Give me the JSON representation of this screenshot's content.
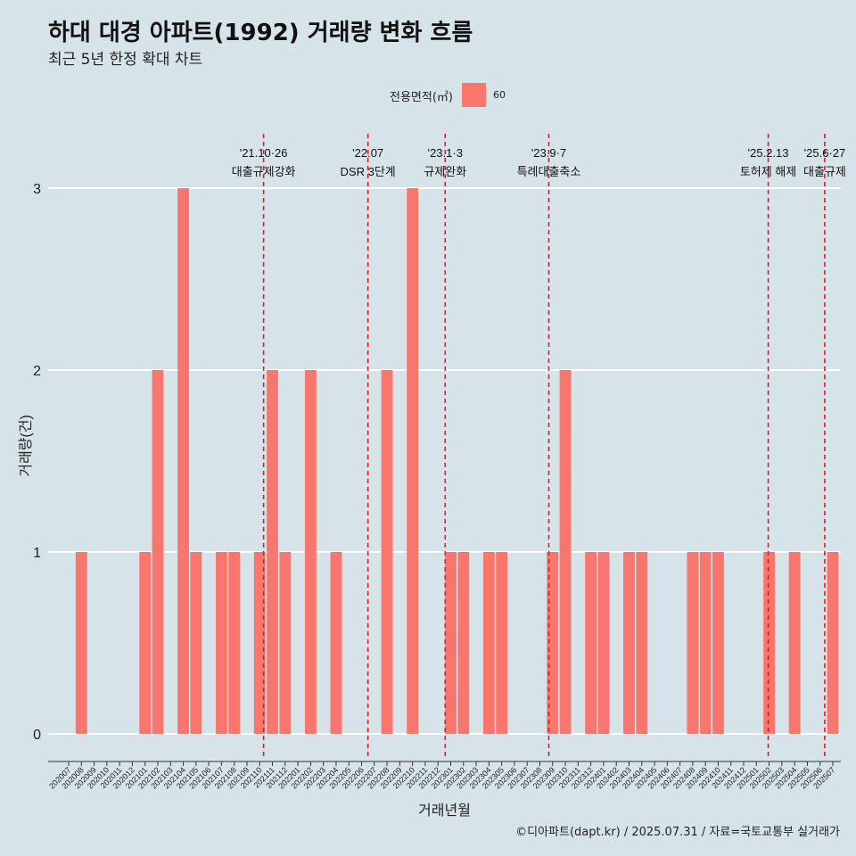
{
  "title": "하대 대경 아파트(1992) 거래량 변화 흐름",
  "subtitle": "최근 5년 한정 확대 차트",
  "legend": {
    "title": "전용면적(㎡)",
    "label": "60",
    "color": "#f8766d"
  },
  "caption": "©디아파트(dapt.kr) / 2025.07.31 / 자료=국토교통부 실거래가",
  "colors": {
    "background": "#d6e4ea",
    "bar": "#f8766d",
    "event_line": "#e31a1c",
    "grid": "#ffffff"
  },
  "chart_data": {
    "type": "bar",
    "xlabel": "거래년월",
    "ylabel": "거래량(건)",
    "ylim": [
      0,
      3
    ],
    "yticks": [
      0,
      1,
      2,
      3
    ],
    "grid": true,
    "legend_position": "top",
    "categories": [
      "202007",
      "202008",
      "202009",
      "202010",
      "202011",
      "202012",
      "202101",
      "202102",
      "202103",
      "202104",
      "202105",
      "202106",
      "202107",
      "202108",
      "202109",
      "202110",
      "202111",
      "202112",
      "202201",
      "202202",
      "202203",
      "202204",
      "202205",
      "202206",
      "202207",
      "202208",
      "202209",
      "202210",
      "202211",
      "202212",
      "202301",
      "202302",
      "202303",
      "202304",
      "202305",
      "202306",
      "202307",
      "202308",
      "202309",
      "202310",
      "202311",
      "202312",
      "202401",
      "202402",
      "202403",
      "202404",
      "202405",
      "202406",
      "202407",
      "202408",
      "202409",
      "202410",
      "202411",
      "202412",
      "202501",
      "202502",
      "202503",
      "202504",
      "202505",
      "202506",
      "202507"
    ],
    "series": [
      {
        "name": "60",
        "values": [
          0,
          1,
          0,
          0,
          0,
          0,
          1,
          2,
          0,
          3,
          1,
          0,
          1,
          1,
          0,
          1,
          2,
          1,
          0,
          2,
          0,
          1,
          0,
          0,
          0,
          2,
          0,
          3,
          0,
          0,
          1,
          1,
          0,
          1,
          1,
          0,
          0,
          0,
          1,
          2,
          0,
          1,
          1,
          0,
          1,
          1,
          0,
          0,
          0,
          1,
          1,
          1,
          0,
          0,
          0,
          1,
          0,
          1,
          0,
          0,
          1
        ]
      }
    ],
    "bar_pairs": [
      {
        "month": "202008",
        "value": 1
      },
      {
        "month": "202101",
        "value": 1
      },
      {
        "month": "202102",
        "value": 2
      },
      {
        "month": "202104",
        "value": 3
      },
      {
        "month": "202105",
        "value": 1
      },
      {
        "month": "202107",
        "value": 1
      },
      {
        "month": "202108",
        "value": 1
      },
      {
        "month": "202110",
        "value": 1
      },
      {
        "month": "202111",
        "value": 2
      },
      {
        "month": "202112",
        "value": 1
      },
      {
        "month": "202202",
        "value": 2
      },
      {
        "month": "202204",
        "value": 1
      },
      {
        "month": "202208",
        "value": 2
      },
      {
        "month": "202210",
        "value": 3
      },
      {
        "month": "202301",
        "value": 1
      },
      {
        "month": "202302",
        "value": 1
      },
      {
        "month": "202304",
        "value": 1
      },
      {
        "month": "202305",
        "value": 1
      },
      {
        "month": "202309",
        "value": 1
      },
      {
        "month": "202310",
        "value": 2
      },
      {
        "month": "202312",
        "value": 1
      },
      {
        "month": "202401",
        "value": 1
      },
      {
        "month": "202403",
        "value": 1
      },
      {
        "month": "202404",
        "value": 1
      },
      {
        "month": "202408",
        "value": 1
      },
      {
        "month": "202409",
        "value": 1
      },
      {
        "month": "202410",
        "value": 1
      },
      {
        "month": "202502",
        "value": 1
      },
      {
        "month": "202504",
        "value": 1
      },
      {
        "month": "202507",
        "value": 1
      }
    ],
    "events": [
      {
        "date": "2021-10-26",
        "line1": "'21.10·26",
        "line2": "대출규제강화"
      },
      {
        "date": "2022-07-01",
        "line1": "'22.07",
        "line2": "DSR 3단계"
      },
      {
        "date": "2023-01-03",
        "line1": "'23.1·3",
        "line2": "규제완화"
      },
      {
        "date": "2023-09-07",
        "line1": "'23.9·7",
        "line2": "특례대출축소"
      },
      {
        "date": "2025-02-13",
        "line1": "'25.2.13",
        "line2": "토허제 해제"
      },
      {
        "date": "2025-06-27",
        "line1": "'25.6·27",
        "line2": "대출규제"
      }
    ]
  }
}
